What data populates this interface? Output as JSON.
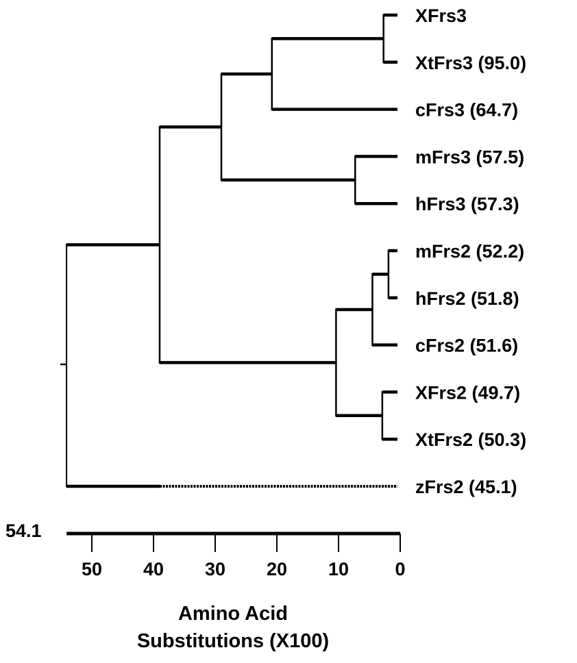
{
  "tree": {
    "depth": 54.1,
    "children": [
      {
        "depth": 39,
        "children": [
          {
            "depth": 29,
            "children": [
              {
                "depth": 20.8,
                "children": [
                  {
                    "depth": 2.7,
                    "children": [
                      {
                        "label": "XFrs3"
                      },
                      {
                        "label": "XtFrs3 (95.0)"
                      }
                    ]
                  },
                  {
                    "label": "cFrs3 (64.7)"
                  }
                ]
              },
              {
                "depth": 7.3,
                "children": [
                  {
                    "label": "mFrs3 (57.5)"
                  },
                  {
                    "label": "hFrs3 (57.3)"
                  }
                ]
              }
            ]
          },
          {
            "depth": 10.4,
            "children": [
              {
                "depth": 4.5,
                "children": [
                  {
                    "depth": 1.9,
                    "children": [
                      {
                        "label": "mFrs2 (52.2)"
                      },
                      {
                        "label": "hFrs2 (51.8)"
                      }
                    ]
                  },
                  {
                    "label": "cFrs2 (51.6)"
                  }
                ]
              },
              {
                "depth": 2.9,
                "children": [
                  {
                    "label": "XFrs2 (49.7)"
                  },
                  {
                    "label": "XtFrs2 (50.3)"
                  }
                ]
              }
            ]
          }
        ]
      },
      {
        "label": "zFrs2 (45.1)",
        "dotted_from_depth": 39
      }
    ]
  },
  "root_label": "54.1",
  "axis": {
    "ticks": [
      50,
      40,
      30,
      20,
      10,
      0
    ],
    "range": [
      54.1,
      0
    ],
    "title_line1": "Amino Acid",
    "title_line2": "Substitutions (X100)"
  }
}
